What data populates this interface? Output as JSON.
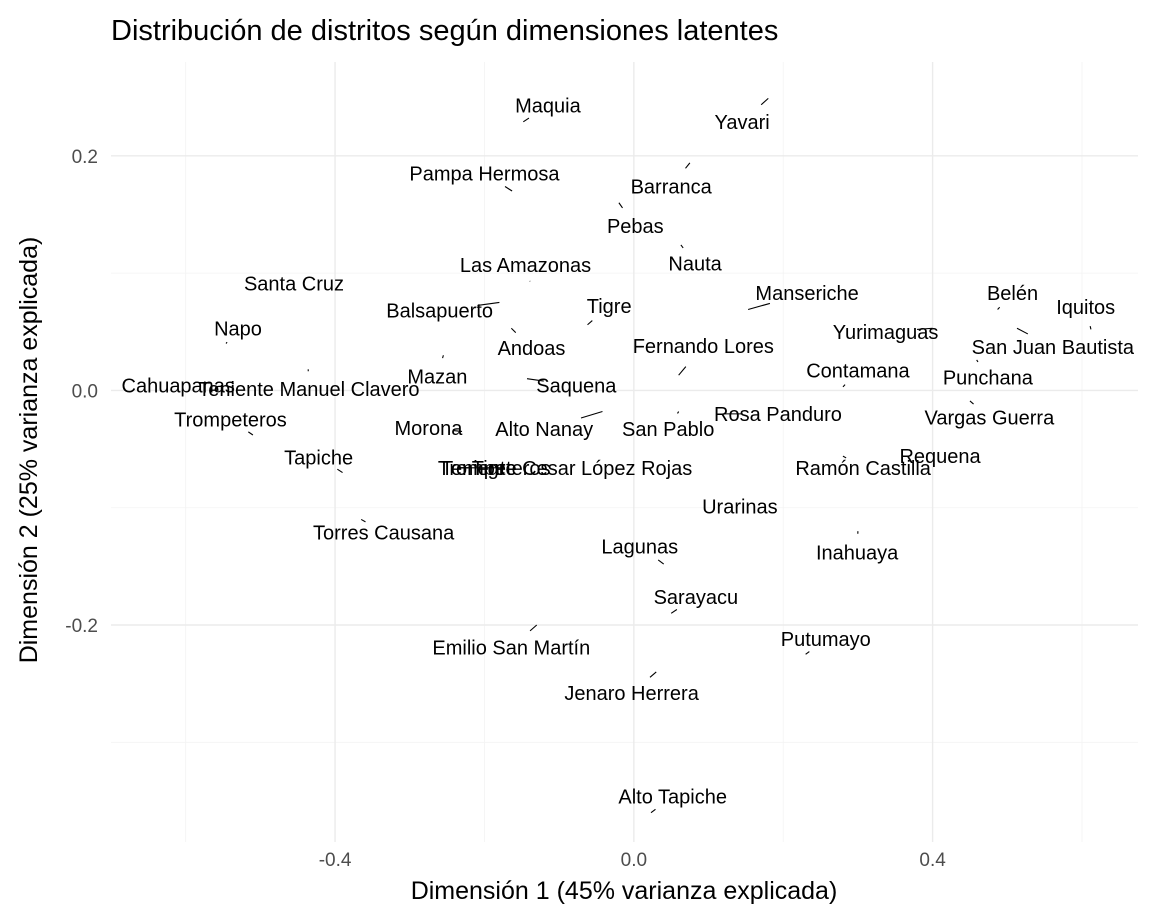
{
  "chart_data": {
    "type": "scatter",
    "title": "Distribución de distritos según dimensiones latentes",
    "xlabel": "Dimensión 1 (45% varianza explicada)",
    "ylabel": "Dimensión 2 (25% varianza explicada)",
    "xlim": [
      -0.7,
      0.675
    ],
    "ylim": [
      -0.385,
      0.28
    ],
    "x_ticks": [
      -0.4,
      0.0,
      0.4
    ],
    "x_tick_labels": [
      "-0.4",
      "0.0",
      "0.4"
    ],
    "y_ticks": [
      -0.2,
      0.0,
      0.2
    ],
    "y_tick_labels": [
      "-0.2",
      "0.0",
      "0.2"
    ],
    "grid": true,
    "points": [
      {
        "label": "Maquia",
        "x": -0.148,
        "y": 0.229,
        "lx": -0.115,
        "ly": 0.243
      },
      {
        "label": "Yavari",
        "x": 0.18,
        "y": 0.249,
        "lx": 0.145,
        "ly": 0.229
      },
      {
        "label": "Pampa Hermosa",
        "x": -0.163,
        "y": 0.17,
        "lx": -0.2,
        "ly": 0.185
      },
      {
        "label": "Barranca",
        "x": 0.075,
        "y": 0.194,
        "lx": 0.05,
        "ly": 0.174
      },
      {
        "label": "Pebas",
        "x": -0.02,
        "y": 0.16,
        "lx": 0.002,
        "ly": 0.14
      },
      {
        "label": "Las Amazonas",
        "x": -0.139,
        "y": 0.093,
        "lx": -0.145,
        "ly": 0.107
      },
      {
        "label": "Nauta",
        "x": 0.063,
        "y": 0.124,
        "lx": 0.082,
        "ly": 0.108
      },
      {
        "label": "Santa Cruz",
        "x": -0.454,
        "y": 0.078,
        "lx": -0.455,
        "ly": 0.091
      },
      {
        "label": "Manseriche",
        "x": 0.153,
        "y": 0.069,
        "lx": 0.232,
        "ly": 0.083
      },
      {
        "label": "Belén",
        "x": 0.487,
        "y": 0.069,
        "lx": 0.507,
        "ly": 0.083
      },
      {
        "label": "Iquitos",
        "x": 0.612,
        "y": 0.052,
        "lx": 0.605,
        "ly": 0.071
      },
      {
        "label": "Balsapuerto",
        "x": -0.18,
        "y": 0.075,
        "lx": -0.26,
        "ly": 0.068
      },
      {
        "label": "Tigre",
        "x": -0.062,
        "y": 0.056,
        "lx": -0.033,
        "ly": 0.072
      },
      {
        "label": "Yurimaguas",
        "x": 0.4,
        "y": 0.053,
        "lx": 0.337,
        "ly": 0.05
      },
      {
        "label": "San Juan Bautista",
        "x": 0.513,
        "y": 0.053,
        "lx": 0.561,
        "ly": 0.037
      },
      {
        "label": "Napo",
        "x": -0.546,
        "y": 0.04,
        "lx": -0.53,
        "ly": 0.053
      },
      {
        "label": "Andoas",
        "x": -0.164,
        "y": 0.053,
        "lx": -0.137,
        "ly": 0.036
      },
      {
        "label": "Fernando Lores",
        "x": 0.06,
        "y": 0.013,
        "lx": 0.093,
        "ly": 0.038
      },
      {
        "label": "Contamana",
        "x": 0.28,
        "y": 0.003,
        "lx": 0.3,
        "ly": 0.017
      },
      {
        "label": "Punchana",
        "x": 0.459,
        "y": 0.026,
        "lx": 0.474,
        "ly": 0.011
      },
      {
        "label": "Cahuapanas",
        "x": -0.597,
        "y": 0.0,
        "lx": -0.61,
        "ly": 0.004
      },
      {
        "label": "Teniente Manuel Clavero",
        "x": -0.436,
        "y": 0.018,
        "lx": -0.435,
        "ly": 0.001
      },
      {
        "label": "Mazan",
        "x": -0.255,
        "y": 0.03,
        "lx": -0.263,
        "ly": 0.012
      },
      {
        "label": "Saquena",
        "x": -0.143,
        "y": 0.01,
        "lx": -0.077,
        "ly": 0.004
      },
      {
        "label": "Trompeteros",
        "x": -0.51,
        "y": -0.038,
        "lx": -0.54,
        "ly": -0.025
      },
      {
        "label": "Rosa Panduro",
        "x": 0.12,
        "y": -0.02,
        "lx": 0.193,
        "ly": -0.02
      },
      {
        "label": "Vargas Guerra",
        "x": 0.45,
        "y": -0.009,
        "lx": 0.476,
        "ly": -0.023
      },
      {
        "label": "Morona",
        "x": -0.23,
        "y": -0.035,
        "lx": -0.275,
        "ly": -0.032
      },
      {
        "label": "Alto Nanay",
        "x": -0.042,
        "y": -0.018,
        "lx": -0.12,
        "ly": -0.033
      },
      {
        "label": "San Pablo",
        "x": 0.06,
        "y": -0.018,
        "lx": 0.046,
        "ly": -0.033
      },
      {
        "label": "Tapiche",
        "x": -0.39,
        "y": -0.07,
        "lx": -0.422,
        "ly": -0.057
      },
      {
        "label": "Requena",
        "x": 0.425,
        "y": -0.065,
        "lx": 0.41,
        "ly": -0.056
      },
      {
        "label": "Teniente Cesar López Rojas",
        "x": -0.235,
        "y": -0.066,
        "lx": -0.09,
        "ly": -0.066
      },
      {
        "label": "Trompeteros",
        "x": -0.235,
        "y": -0.066,
        "lx": -0.187,
        "ly": -0.066
      },
      {
        "label": "Tigre",
        "x": -0.235,
        "y": -0.066,
        "lx": -0.187,
        "ly": -0.066
      },
      {
        "label": "Ramón Castilla",
        "x": 0.28,
        "y": -0.056,
        "lx": 0.307,
        "ly": -0.066
      },
      {
        "label": "Urarinas",
        "x": 0.13,
        "y": -0.09,
        "lx": 0.142,
        "ly": -0.099
      },
      {
        "label": "Torres Causana",
        "x": -0.365,
        "y": -0.11,
        "lx": -0.335,
        "ly": -0.121
      },
      {
        "label": "Inahuaya",
        "x": 0.3,
        "y": -0.12,
        "lx": 0.299,
        "ly": -0.138
      },
      {
        "label": "Lagunas",
        "x": 0.04,
        "y": -0.148,
        "lx": 0.008,
        "ly": -0.133
      },
      {
        "label": "Sarayacu",
        "x": 0.05,
        "y": -0.19,
        "lx": 0.083,
        "ly": -0.176
      },
      {
        "label": "Putumayo",
        "x": 0.23,
        "y": -0.225,
        "lx": 0.257,
        "ly": -0.212
      },
      {
        "label": "Emilio San Martín",
        "x": -0.13,
        "y": -0.2,
        "lx": -0.164,
        "ly": -0.219
      },
      {
        "label": "Jenaro Herrera",
        "x": 0.03,
        "y": -0.24,
        "lx": -0.003,
        "ly": -0.258
      },
      {
        "label": "Alto Tapiche",
        "x": 0.023,
        "y": -0.36,
        "lx": 0.052,
        "ly": -0.346
      }
    ]
  }
}
